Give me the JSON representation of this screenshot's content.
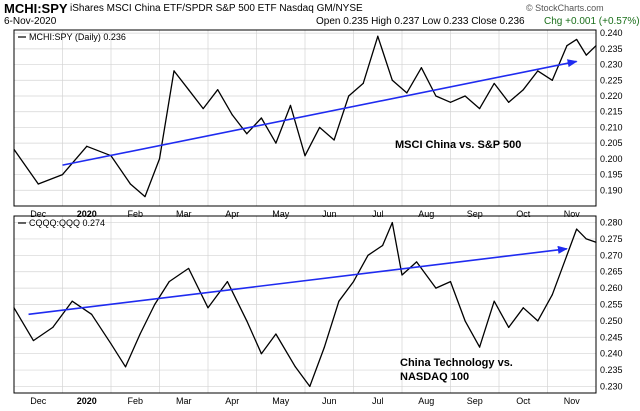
{
  "header": {
    "symbol": "MCHI:SPY",
    "description": "iShares MSCI China ETF/SPDR S&P 500 ETF  Nasdaq GM/NYSE",
    "date": "6-Nov-2020",
    "open_label": "Open",
    "open": "0.235",
    "high_label": "High",
    "high": "0.237",
    "low_label": "Low",
    "low": "0.233",
    "close_label": "Close",
    "close": "0.236",
    "chg_label": "Chg",
    "chg": "+0.001 (+0.57%)",
    "chg_color": "#1a6f1a",
    "brand": "© StockCharts.com"
  },
  "x_axis": {
    "ticks": [
      {
        "label": "Dec",
        "pos": 0.5,
        "bold": false
      },
      {
        "label": "2020",
        "pos": 1.5,
        "bold": true
      },
      {
        "label": "Feb",
        "pos": 2.5,
        "bold": false
      },
      {
        "label": "Mar",
        "pos": 3.5,
        "bold": false
      },
      {
        "label": "Apr",
        "pos": 4.5,
        "bold": false
      },
      {
        "label": "May",
        "pos": 5.5,
        "bold": false
      },
      {
        "label": "Jun",
        "pos": 6.5,
        "bold": false
      },
      {
        "label": "Jul",
        "pos": 7.5,
        "bold": false
      },
      {
        "label": "Aug",
        "pos": 8.5,
        "bold": false
      },
      {
        "label": "Sep",
        "pos": 9.5,
        "bold": false
      },
      {
        "label": "Oct",
        "pos": 10.5,
        "bold": false
      },
      {
        "label": "Nov",
        "pos": 11.5,
        "bold": false
      }
    ]
  },
  "colors": {
    "line": "#000000",
    "trend": "#1f2bf0",
    "grid": "#d4d4d4"
  },
  "chart_data": [
    {
      "type": "line",
      "title": "MCHI:SPY (Daily) 0.236",
      "annotation": "MSCI China vs. S&P 500",
      "ylim": [
        0.185,
        0.241
      ],
      "yticks": [
        0.19,
        0.195,
        0.2,
        0.205,
        0.21,
        0.215,
        0.22,
        0.225,
        0.23,
        0.235,
        0.24
      ],
      "grid": true,
      "series": [
        {
          "x": [
            0,
            0.5,
            1,
            1.5,
            2,
            2.4,
            2.7,
            3,
            3.3,
            3.6,
            3.9,
            4.2,
            4.5,
            4.8,
            5.1,
            5.4,
            5.7,
            6,
            6.3,
            6.6,
            6.9,
            7.2,
            7.5,
            7.8,
            8.1,
            8.4,
            8.7,
            9,
            9.3,
            9.6,
            9.9,
            10.2,
            10.5,
            10.8,
            11.1,
            11.4,
            11.6,
            11.8,
            12
          ],
          "y": [
            0.203,
            0.192,
            0.195,
            0.204,
            0.201,
            0.192,
            0.188,
            0.2,
            0.228,
            0.222,
            0.216,
            0.222,
            0.214,
            0.208,
            0.213,
            0.205,
            0.217,
            0.201,
            0.21,
            0.206,
            0.22,
            0.224,
            0.239,
            0.225,
            0.221,
            0.229,
            0.22,
            0.218,
            0.22,
            0.216,
            0.224,
            0.218,
            0.222,
            0.228,
            0.225,
            0.236,
            0.238,
            0.233,
            0.236
          ]
        }
      ],
      "trendline": {
        "x": [
          1.0,
          11.6
        ],
        "y": [
          0.198,
          0.231
        ]
      }
    },
    {
      "type": "line",
      "title": "CQQQ:QQQ 0.274",
      "annotation": [
        "China Technology vs.",
        "NASDAQ 100"
      ],
      "ylim": [
        0.228,
        0.282
      ],
      "yticks": [
        0.23,
        0.235,
        0.24,
        0.245,
        0.25,
        0.255,
        0.26,
        0.265,
        0.27,
        0.275,
        0.28
      ],
      "grid": true,
      "series": [
        {
          "x": [
            0,
            0.4,
            0.8,
            1.2,
            1.6,
            2,
            2.3,
            2.6,
            2.9,
            3.2,
            3.6,
            4,
            4.4,
            4.8,
            5.1,
            5.4,
            5.8,
            6.1,
            6.4,
            6.7,
            7,
            7.3,
            7.6,
            7.8,
            8,
            8.3,
            8.7,
            9,
            9.3,
            9.6,
            9.9,
            10.2,
            10.5,
            10.8,
            11.1,
            11.4,
            11.6,
            11.8,
            12
          ],
          "y": [
            0.254,
            0.244,
            0.248,
            0.256,
            0.252,
            0.243,
            0.236,
            0.246,
            0.255,
            0.262,
            0.266,
            0.254,
            0.262,
            0.25,
            0.24,
            0.246,
            0.236,
            0.23,
            0.242,
            0.256,
            0.262,
            0.27,
            0.273,
            0.28,
            0.264,
            0.268,
            0.26,
            0.262,
            0.25,
            0.242,
            0.256,
            0.248,
            0.254,
            0.25,
            0.258,
            0.27,
            0.278,
            0.275,
            0.274
          ]
        }
      ],
      "trendline": {
        "x": [
          0.3,
          11.4
        ],
        "y": [
          0.252,
          0.272
        ]
      }
    }
  ]
}
